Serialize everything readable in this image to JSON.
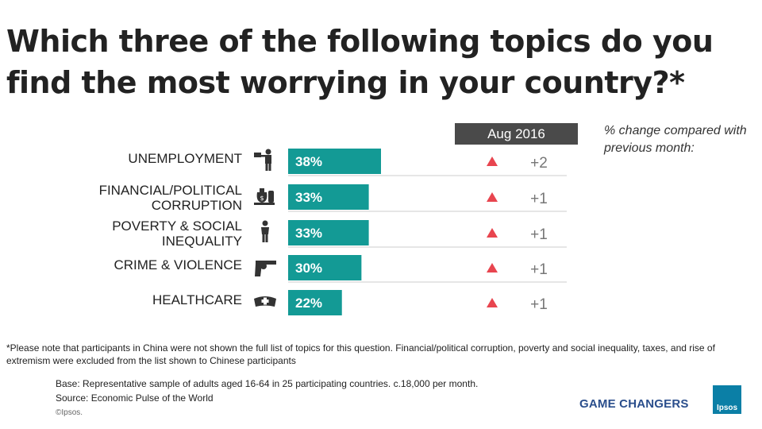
{
  "title": "Which three of the following topics do you find the most worrying in your country?*",
  "period_header": "Aug 2016",
  "change_note": "% change compared with previous month:",
  "colors": {
    "bar": "#139a95",
    "up_triangle": "#e8454f",
    "header_bg": "#4a4a4a"
  },
  "chart_data": {
    "type": "bar",
    "orientation": "horizontal",
    "categories": [
      "UNEMPLOYMENT",
      "FINANCIAL/POLITICAL CORRUPTION",
      "POVERTY & SOCIAL INEQUALITY",
      "CRIME & VIOLENCE",
      "HEALTHCARE"
    ],
    "label_lines": [
      [
        "UNEMPLOYMENT"
      ],
      [
        "FINANCIAL/POLITICAL",
        "CORRUPTION"
      ],
      [
        "POVERTY & SOCIAL",
        "INEQUALITY"
      ],
      [
        "CRIME & VIOLENCE"
      ],
      [
        "HEALTHCARE"
      ]
    ],
    "series": [
      {
        "name": "Aug 2016",
        "values": [
          38,
          33,
          33,
          30,
          22
        ]
      }
    ],
    "value_labels": [
      "38%",
      "33%",
      "33%",
      "30%",
      "22%"
    ],
    "changes": [
      "+2",
      "+1",
      "+1",
      "+1",
      "+1"
    ],
    "change_direction": [
      "up",
      "up",
      "up",
      "up",
      "up"
    ],
    "icons": [
      "unemployment-icon",
      "money-bag-icon",
      "person-icon",
      "revolver-icon",
      "nurse-cap-icon"
    ],
    "xlim": [
      0,
      100
    ],
    "grid": false
  },
  "footnote": "*Please note that participants in China were not shown the full list of topics for this question. Financial/political corruption, poverty and  social inequality, taxes, and rise of extremism were excluded from the list shown to Chinese participants",
  "base": "Base: Representative sample of adults aged 16-64  in 25 participating countries. c.18,000 per month.",
  "source": "Source: Economic Pulse of the World",
  "copyright": "©Ipsos.",
  "brand_tagline": "GAME CHANGERS",
  "logo_text": "Ipsos"
}
